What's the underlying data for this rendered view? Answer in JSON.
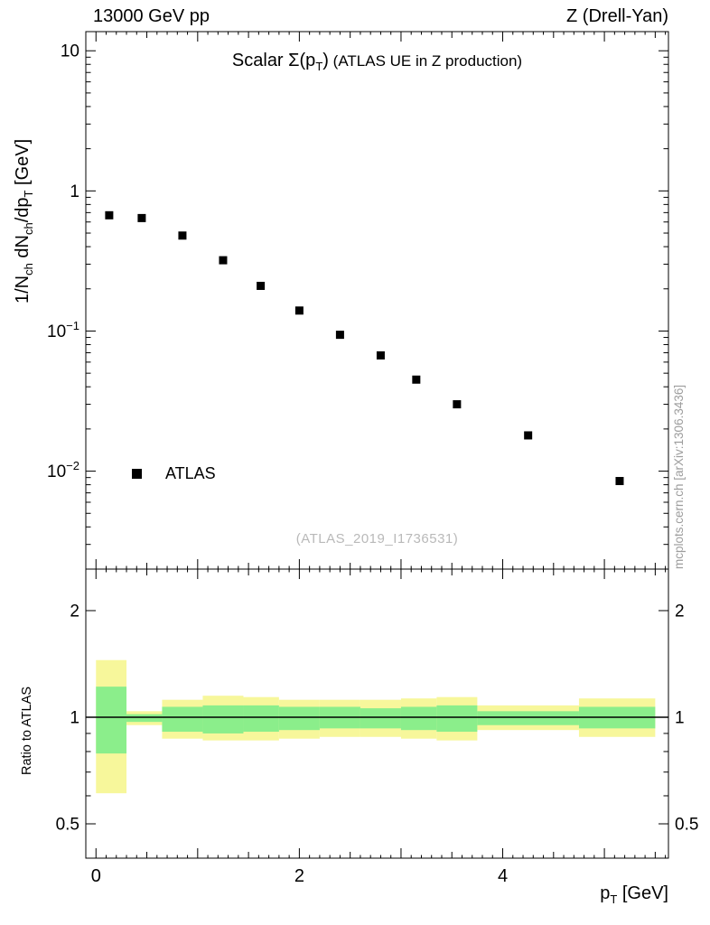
{
  "header": {
    "left": "13000 GeV pp",
    "right": "Z (Drell-Yan)"
  },
  "plot_title": {
    "part1": "Scalar Σ(p",
    "sub": "T",
    "part2": ")",
    "note": " (ATLAS UE in Z production)"
  },
  "axes": {
    "y_main_title": {
      "p1": "1/N",
      "s1": "ch",
      "p2": " dN",
      "s2": "ch",
      "p3": "/dp",
      "s3": "T",
      "p4": " [GeV]"
    },
    "y_ratio_title": "Ratio to ATLAS",
    "x_title": {
      "p1": "p",
      "s1": "T",
      "p2": " [GeV]"
    }
  },
  "legend": {
    "label": "ATLAS"
  },
  "watermark": "(ATLAS_2019_I1736531)",
  "side_note": "mcplots.cern.ch [arXiv:1306.3436]",
  "colors": {
    "band_outer": "#f7f79b",
    "band_inner": "#8bee8b",
    "marker": "#000000",
    "reference_line": "#000000"
  },
  "chart_data": [
    {
      "type": "scatter",
      "title": "Scalar Sigma(pT) (ATLAS UE in Z production)",
      "xlabel": "pT [GeV]",
      "ylabel": "1/Nch dNch/dpT [GeV]",
      "series_name": "ATLAS",
      "marker": "filled-square",
      "xscale": "linear",
      "yscale": "log",
      "xlim": [
        -0.1,
        5.63
      ],
      "ylim": [
        0.002,
        13.7
      ],
      "grid": false,
      "x": [
        0.13,
        0.45,
        0.85,
        1.25,
        1.62,
        2.0,
        2.4,
        2.8,
        3.15,
        3.55,
        4.25,
        5.15
      ],
      "y": [
        0.67,
        0.64,
        0.48,
        0.32,
        0.21,
        0.14,
        0.094,
        0.067,
        0.045,
        0.03,
        0.018,
        0.0085
      ],
      "xticks": [
        {
          "v": 0,
          "label": "0"
        },
        {
          "v": 2,
          "label": "2"
        },
        {
          "v": 4,
          "label": "4"
        }
      ],
      "yticks": [
        {
          "v": 10,
          "label": "10"
        },
        {
          "v": 1,
          "label": "1"
        },
        {
          "v": 0.1,
          "base": "10",
          "exp": "−1"
        },
        {
          "v": 0.01,
          "base": "10",
          "exp": "−2"
        }
      ]
    },
    {
      "type": "band-ratio",
      "ylabel": "Ratio to ATLAS",
      "yscale": "log",
      "ylim": [
        0.4,
        2.62
      ],
      "reference_line": 1.0,
      "yticks": [
        {
          "v": 2,
          "label": "2"
        },
        {
          "v": 1,
          "label": "1"
        },
        {
          "v": 0.5,
          "label": "0.5"
        }
      ],
      "yticks_minor": [
        0.4,
        0.6,
        0.7,
        0.8,
        0.9
      ],
      "bins": [
        {
          "x": [
            0.0,
            0.3
          ],
          "outer": [
            0.61,
            1.45
          ],
          "inner": [
            0.79,
            1.22
          ]
        },
        {
          "x": [
            0.3,
            0.65
          ],
          "outer": [
            0.95,
            1.04
          ],
          "inner": [
            0.97,
            1.02
          ]
        },
        {
          "x": [
            0.65,
            1.05
          ],
          "outer": [
            0.87,
            1.12
          ],
          "inner": [
            0.91,
            1.07
          ]
        },
        {
          "x": [
            1.05,
            1.45
          ],
          "outer": [
            0.86,
            1.15
          ],
          "inner": [
            0.9,
            1.08
          ]
        },
        {
          "x": [
            1.45,
            1.8
          ],
          "outer": [
            0.86,
            1.14
          ],
          "inner": [
            0.91,
            1.08
          ]
        },
        {
          "x": [
            1.8,
            2.2
          ],
          "outer": [
            0.87,
            1.12
          ],
          "inner": [
            0.92,
            1.07
          ]
        },
        {
          "x": [
            2.2,
            2.6
          ],
          "outer": [
            0.88,
            1.12
          ],
          "inner": [
            0.93,
            1.07
          ]
        },
        {
          "x": [
            2.6,
            3.0
          ],
          "outer": [
            0.88,
            1.12
          ],
          "inner": [
            0.93,
            1.06
          ]
        },
        {
          "x": [
            3.0,
            3.35
          ],
          "outer": [
            0.87,
            1.13
          ],
          "inner": [
            0.92,
            1.07
          ]
        },
        {
          "x": [
            3.35,
            3.75
          ],
          "outer": [
            0.86,
            1.14
          ],
          "inner": [
            0.91,
            1.08
          ]
        },
        {
          "x": [
            3.75,
            4.75
          ],
          "outer": [
            0.92,
            1.08
          ],
          "inner": [
            0.95,
            1.04
          ]
        },
        {
          "x": [
            4.75,
            5.5
          ],
          "outer": [
            0.88,
            1.13
          ],
          "inner": [
            0.93,
            1.07
          ]
        }
      ]
    }
  ]
}
